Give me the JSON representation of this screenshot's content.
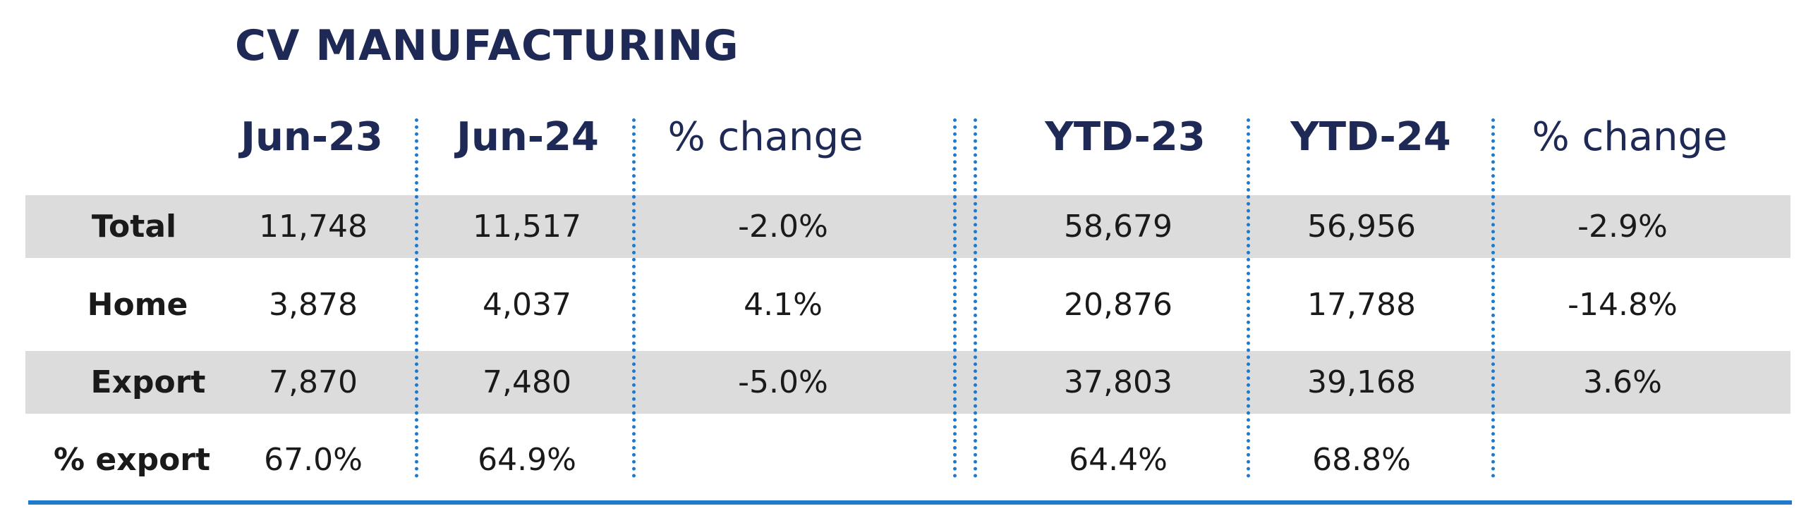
{
  "title": "CV MANUFACTURING",
  "headers": [
    "Jun-23",
    "Jun-24",
    "% change",
    "YTD-23",
    "YTD-24",
    "% change"
  ],
  "rows": [
    {
      "label": "Total",
      "values": [
        "11,748",
        "11,517",
        "-2.0%",
        "58,679",
        "56,956",
        "-2.9%"
      ]
    },
    {
      "label": "Home",
      "values": [
        "3,878",
        "4,037",
        "4.1%",
        "20,876",
        "17,788",
        "-14.8%"
      ]
    },
    {
      "label": "Export",
      "values": [
        "7,870",
        "7,480",
        "-5.0%",
        "37,803",
        "39,168",
        "3.6%"
      ]
    },
    {
      "label": "% export",
      "values": [
        "67.0%",
        "64.9%",
        "",
        "64.4%",
        "68.8%",
        ""
      ]
    }
  ],
  "colors": {
    "title": "#1e2a55",
    "accent": "#1f7acb",
    "band": "#dcdcdc",
    "text": "#1a1a1a"
  },
  "chart_data": {
    "type": "table",
    "title": "CV MANUFACTURING",
    "columns": [
      "Jun-23",
      "Jun-24",
      "% change",
      "YTD-23",
      "YTD-24",
      "% change"
    ],
    "rows": [
      {
        "label": "Total",
        "values": [
          11748,
          11517,
          -2.0,
          58679,
          56956,
          -2.9
        ]
      },
      {
        "label": "Home",
        "values": [
          3878,
          4037,
          4.1,
          20876,
          17788,
          -14.8
        ]
      },
      {
        "label": "Export",
        "values": [
          7870,
          7480,
          -5.0,
          37803,
          39168,
          3.6
        ]
      },
      {
        "label": "% export",
        "values": [
          67.0,
          64.9,
          null,
          64.4,
          68.8,
          null
        ]
      }
    ]
  }
}
